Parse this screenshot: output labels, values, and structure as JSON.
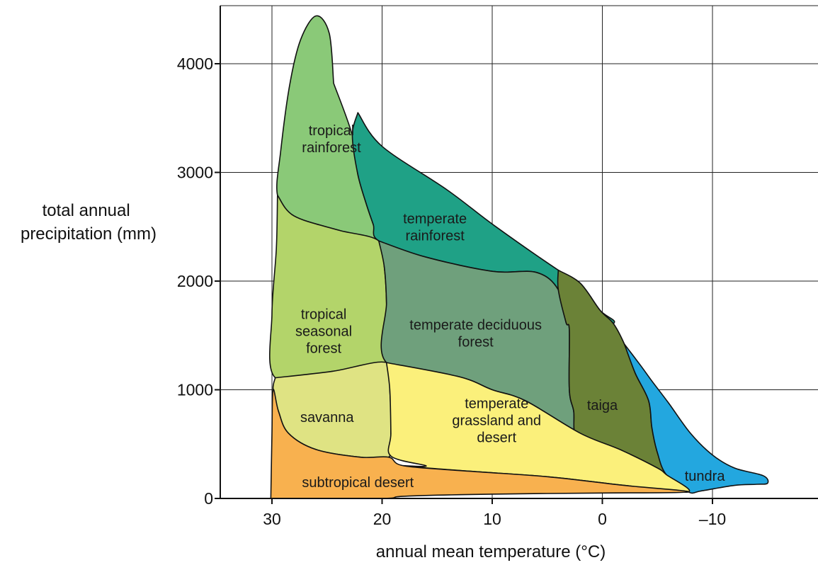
{
  "chart_data": {
    "type": "area",
    "xlabel": "annual mean temperature (°C)",
    "ylabel": [
      "total annual",
      "precipitation (mm)"
    ],
    "xlim": [
      35,
      -20
    ],
    "ylim": [
      0,
      4600
    ],
    "x_axis_reversed": true,
    "grid": true,
    "x_ticks": [
      {
        "value": 30,
        "label": "30"
      },
      {
        "value": 20,
        "label": "20"
      },
      {
        "value": 10,
        "label": "10"
      },
      {
        "value": 0,
        "label": "0"
      },
      {
        "value": -10,
        "label": "–10"
      }
    ],
    "y_ticks": [
      {
        "value": 0,
        "label": "0"
      },
      {
        "value": 1000,
        "label": "1000"
      },
      {
        "value": 2000,
        "label": "2000"
      },
      {
        "value": 3000,
        "label": "3000"
      },
      {
        "value": 4000,
        "label": "4000"
      }
    ],
    "biomes": [
      {
        "id": "tropical-rainforest",
        "color": "#8ac978",
        "label_lines": [
          "tropical",
          "rainforest"
        ],
        "label_at": [
          24.6,
          3310
        ],
        "outline": [
          [
            24.4,
            3820
          ],
          [
            22.7,
            3340
          ],
          [
            22.2,
            2980
          ],
          [
            21.4,
            2700
          ],
          [
            20.8,
            2520
          ],
          [
            20.3,
            2370
          ],
          [
            24,
            2470
          ],
          [
            28,
            2600
          ],
          [
            29.5,
            2790
          ],
          [
            29.2,
            3200
          ],
          [
            28.4,
            3800
          ],
          [
            27.4,
            4220
          ],
          [
            26,
            4440
          ],
          [
            24.8,
            4280
          ],
          [
            24.4,
            3820
          ]
        ]
      },
      {
        "id": "temperate-rainforest",
        "color": "#1fa186",
        "label_lines": [
          "temperate",
          "rainforest"
        ],
        "label_at": [
          15.2,
          2500
        ],
        "outline": [
          [
            22.2,
            3550
          ],
          [
            20,
            3240
          ],
          [
            14.1,
            2840
          ],
          [
            9.8,
            2510
          ],
          [
            4,
            2100
          ],
          [
            2,
            1980
          ],
          [
            0.2,
            1730
          ],
          [
            -1,
            1610
          ],
          [
            3,
            1550
          ],
          [
            3.3,
            1620
          ],
          [
            4,
            1920
          ],
          [
            6,
            2080
          ],
          [
            10,
            2090
          ],
          [
            16,
            2220
          ],
          [
            20.3,
            2370
          ],
          [
            20.8,
            2520
          ],
          [
            21.4,
            2700
          ],
          [
            22.2,
            2980
          ],
          [
            22.7,
            3340
          ],
          [
            22.2,
            3550
          ]
        ]
      },
      {
        "id": "tropical-seasonal-forest",
        "color": "#b3d46a",
        "label_lines": [
          "tropical",
          "seasonal",
          "forest"
        ],
        "label_at": [
          25.3,
          1540
        ],
        "outline": [
          [
            29.5,
            2790
          ],
          [
            29.6,
            2300
          ],
          [
            30,
            1700
          ],
          [
            29.7,
            1110
          ],
          [
            24.5,
            1170
          ],
          [
            19.6,
            1250
          ],
          [
            19.6,
            1800
          ],
          [
            19.8,
            2130
          ],
          [
            20.3,
            2370
          ],
          [
            24,
            2470
          ],
          [
            28,
            2600
          ],
          [
            29.5,
            2790
          ]
        ]
      },
      {
        "id": "temperate-deciduous-forest",
        "color": "#6fa07c",
        "label_lines": [
          "temperate deciduous",
          "forest"
        ],
        "label_at": [
          11.5,
          1520
        ],
        "outline": [
          [
            20.3,
            2370
          ],
          [
            16,
            2220
          ],
          [
            10,
            2090
          ],
          [
            6,
            2080
          ],
          [
            4,
            1920
          ],
          [
            3.3,
            1620
          ],
          [
            3,
            1550
          ],
          [
            3,
            1000
          ],
          [
            2.6,
            800
          ],
          [
            2.5,
            600
          ],
          [
            1.5,
            490
          ],
          [
            0,
            400
          ],
          [
            -2,
            270
          ],
          [
            -5.4,
            220
          ],
          [
            -5,
            280
          ],
          [
            -1.6,
            450
          ],
          [
            2,
            600
          ],
          [
            7,
            900
          ],
          [
            10,
            1000
          ],
          [
            13,
            1120
          ],
          [
            19.6,
            1250
          ],
          [
            19.6,
            1800
          ],
          [
            19.8,
            2130
          ],
          [
            20.3,
            2370
          ]
        ]
      },
      {
        "id": "taiga",
        "color": "#6b8237",
        "label_lines": [
          "taiga"
        ],
        "label_at": [
          -0.0,
          860
        ],
        "outline": [
          [
            4,
            2100
          ],
          [
            2,
            1980
          ],
          [
            0.2,
            1730
          ],
          [
            -1,
            1610
          ],
          [
            -2,
            1420
          ],
          [
            -3,
            1150
          ],
          [
            -4.2,
            900
          ],
          [
            -4.5,
            650
          ],
          [
            -5,
            420
          ],
          [
            -5.8,
            220
          ],
          [
            -5.4,
            220
          ],
          [
            -2,
            270
          ],
          [
            0,
            400
          ],
          [
            1.5,
            490
          ],
          [
            2.5,
            600
          ],
          [
            2.6,
            800
          ],
          [
            3,
            1000
          ],
          [
            3,
            1550
          ],
          [
            3.3,
            1620
          ],
          [
            4,
            1920
          ],
          [
            4,
            2100
          ]
        ]
      },
      {
        "id": "tundra",
        "color": "#23a7df",
        "label_lines": [
          "tundra"
        ],
        "label_at": [
          -9.3,
          210
        ],
        "outline": [
          [
            -2,
            1420
          ],
          [
            -3,
            1150
          ],
          [
            -4.2,
            900
          ],
          [
            -4.5,
            650
          ],
          [
            -5,
            420
          ],
          [
            -5.8,
            220
          ],
          [
            -7.8,
            60
          ],
          [
            -9,
            70
          ],
          [
            -12,
            120
          ],
          [
            -14,
            130
          ],
          [
            -15,
            140
          ],
          [
            -14.6,
            210
          ],
          [
            -12,
            280
          ],
          [
            -10,
            400
          ],
          [
            -8,
            600
          ],
          [
            -6,
            880
          ],
          [
            -4.5,
            1080
          ],
          [
            -3.5,
            1220
          ],
          [
            -2,
            1420
          ]
        ]
      },
      {
        "id": "savanna",
        "color": "#dfe383",
        "label_lines": [
          "savanna"
        ],
        "label_at": [
          25.0,
          750
        ],
        "outline": [
          [
            29.7,
            1110
          ],
          [
            29.9,
            1000
          ],
          [
            29.4,
            800
          ],
          [
            28.5,
            600
          ],
          [
            26,
            450
          ],
          [
            22,
            380
          ],
          [
            19.4,
            380
          ],
          [
            19.2,
            600
          ],
          [
            19.3,
            1000
          ],
          [
            19.6,
            1250
          ],
          [
            24.5,
            1170
          ],
          [
            29.7,
            1110
          ]
        ]
      },
      {
        "id": "temperate-grassland-desert",
        "color": "#fbf07b",
        "label_lines": [
          "temperate",
          "grassland and",
          "desert"
        ],
        "label_at": [
          9.6,
          720
        ],
        "outline": [
          [
            19.6,
            1250
          ],
          [
            13,
            1120
          ],
          [
            10,
            1000
          ],
          [
            7,
            900
          ],
          [
            2,
            600
          ],
          [
            -1.6,
            450
          ],
          [
            -5,
            280
          ],
          [
            -5.8,
            220
          ],
          [
            -7.8,
            60
          ],
          [
            -2,
            120
          ],
          [
            5,
            200
          ],
          [
            12,
            250
          ],
          [
            18,
            300
          ],
          [
            16,
            300
          ],
          [
            19.2,
            390
          ],
          [
            19.2,
            600
          ],
          [
            19.3,
            1000
          ],
          [
            19.6,
            1250
          ]
        ]
      },
      {
        "id": "subtropical-desert",
        "color": "#f8b14f",
        "label_lines": [
          "subtropical desert"
        ],
        "label_at": [
          22.2,
          150
        ],
        "outline": [
          [
            30.1,
            0
          ],
          [
            30,
            600
          ],
          [
            29.9,
            1000
          ],
          [
            29.4,
            800
          ],
          [
            28.5,
            600
          ],
          [
            26,
            450
          ],
          [
            22,
            380
          ],
          [
            19.4,
            380
          ],
          [
            18,
            300
          ],
          [
            12,
            250
          ],
          [
            5,
            200
          ],
          [
            -2,
            120
          ],
          [
            -7.8,
            60
          ],
          [
            0,
            50
          ],
          [
            10,
            40
          ],
          [
            18,
            20
          ],
          [
            20,
            0
          ],
          [
            30.1,
            0
          ]
        ]
      }
    ]
  }
}
